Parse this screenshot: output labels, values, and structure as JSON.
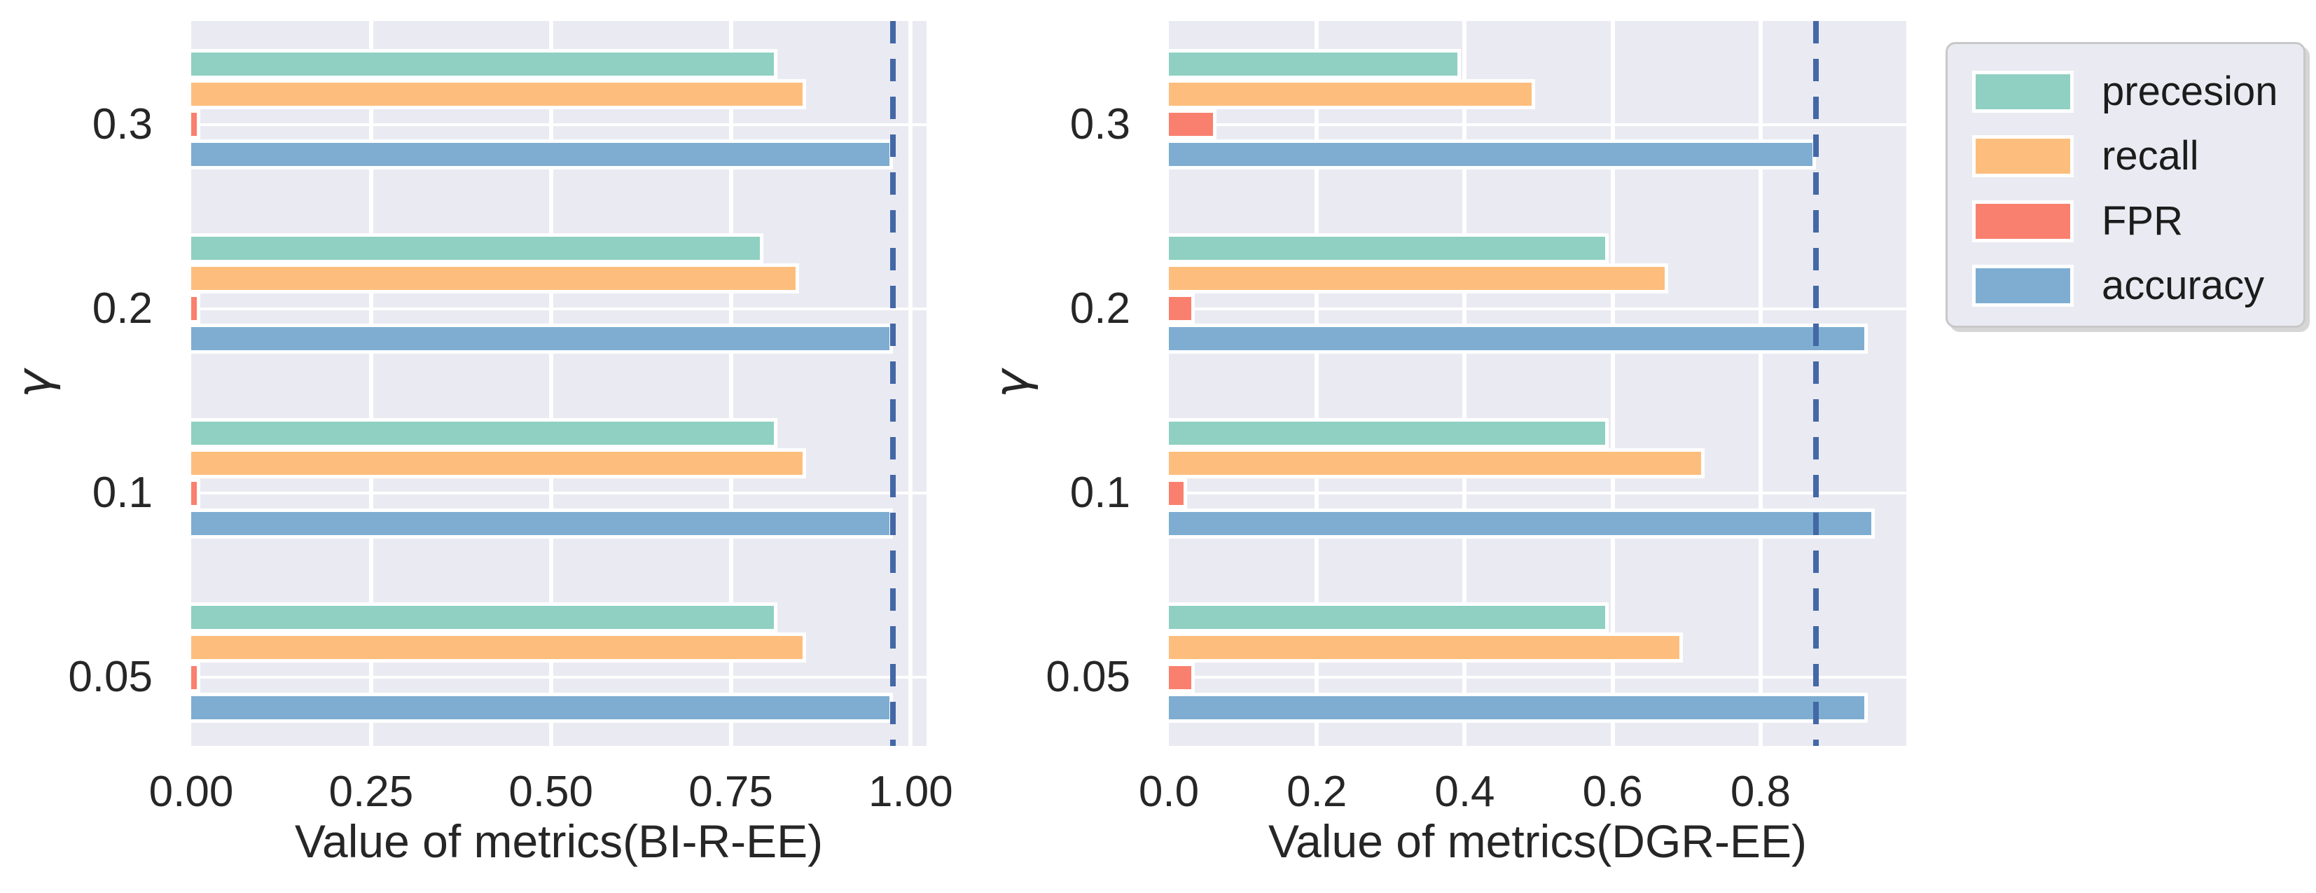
{
  "colors": {
    "precesion": "#8fd0c2",
    "recall": "#fdbe7d",
    "FPR": "#f9806e",
    "accuracy": "#7eadd1",
    "reference_line": "#4468a6",
    "plot_background": "#eaeaf2",
    "grid": "#ffffff",
    "text": "#262626"
  },
  "legend": {
    "items": [
      {
        "label": "precesion",
        "color_key": "precesion"
      },
      {
        "label": "recall",
        "color_key": "recall"
      },
      {
        "label": "FPR",
        "color_key": "FPR"
      },
      {
        "label": "accuracy",
        "color_key": "accuracy"
      }
    ],
    "position": "outside-top-right"
  },
  "chart_data": [
    {
      "type": "bar",
      "orientation": "horizontal",
      "title": "",
      "xlabel": "Value of metrics(BI-R-EE)",
      "ylabel": "γ",
      "categories": [
        "0.3",
        "0.2",
        "0.1",
        "0.05"
      ],
      "series": [
        {
          "name": "precesion",
          "values": [
            0.81,
            0.79,
            0.81,
            0.81
          ]
        },
        {
          "name": "recall",
          "values": [
            0.85,
            0.84,
            0.85,
            0.85
          ]
        },
        {
          "name": "FPR",
          "values": [
            0.008,
            0.008,
            0.008,
            0.008
          ]
        },
        {
          "name": "accuracy",
          "values": [
            0.97,
            0.97,
            0.97,
            0.97
          ]
        }
      ],
      "reference_line_x": 0.975,
      "xticks": {
        "labels": [
          "0.00",
          "0.25",
          "0.50",
          "0.75",
          "1.00"
        ],
        "values": [
          0,
          0.25,
          0.5,
          0.75,
          1.0
        ]
      },
      "xlim": [
        0,
        1.022
      ],
      "grid": true,
      "legend_position": "none"
    },
    {
      "type": "bar",
      "orientation": "horizontal",
      "title": "",
      "xlabel": "Value of metrics(DGR-EE)",
      "ylabel": "γ",
      "categories": [
        "0.3",
        "0.2",
        "0.1",
        "0.05"
      ],
      "series": [
        {
          "name": "precesion",
          "values": [
            0.39,
            0.59,
            0.59,
            0.59
          ]
        },
        {
          "name": "recall",
          "values": [
            0.49,
            0.67,
            0.72,
            0.69
          ]
        },
        {
          "name": "FPR",
          "values": [
            0.06,
            0.03,
            0.02,
            0.03
          ]
        },
        {
          "name": "accuracy",
          "values": [
            0.87,
            0.94,
            0.95,
            0.94
          ]
        }
      ],
      "reference_line_x": 0.875,
      "xticks": {
        "labels": [
          "0.0",
          "0.2",
          "0.4",
          "0.6",
          "0.8"
        ],
        "values": [
          0,
          0.2,
          0.4,
          0.6,
          0.8
        ]
      },
      "xlim": [
        0,
        0.997
      ],
      "grid": true,
      "legend_position": "outside-top-right"
    }
  ]
}
